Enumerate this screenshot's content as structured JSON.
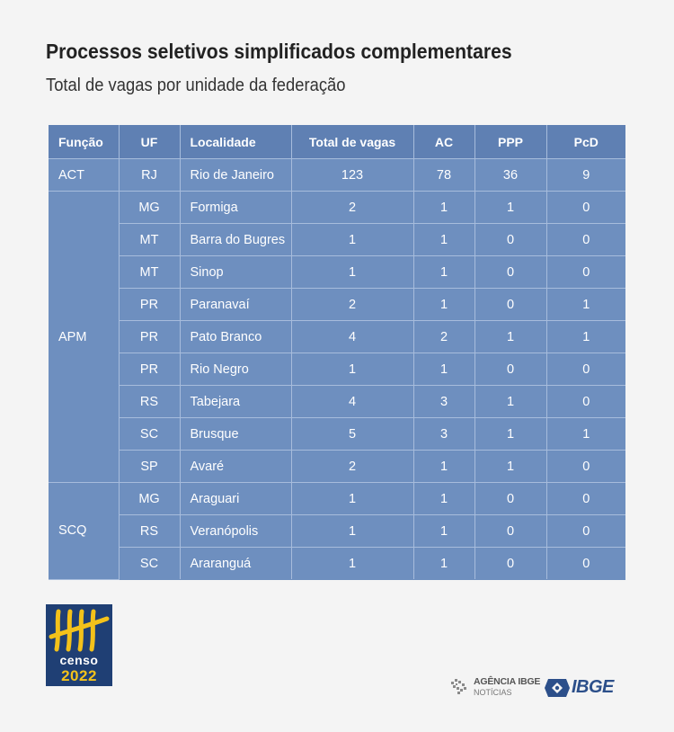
{
  "title": "Processos seletivos simplificados complementares",
  "subtitle": "Total de vagas por unidade da federação",
  "table": {
    "headers": [
      "Função",
      "UF",
      "Localidade",
      "Total de vagas",
      "AC",
      "PPP",
      "PcD"
    ],
    "groups": [
      {
        "funcao": "ACT",
        "rows": [
          {
            "uf": "RJ",
            "localidade": "Rio de Janeiro",
            "total": "123",
            "ac": "78",
            "ppp": "36",
            "pcd": "9"
          }
        ]
      },
      {
        "funcao": "APM",
        "rows": [
          {
            "uf": "MG",
            "localidade": "Formiga",
            "total": "2",
            "ac": "1",
            "ppp": "1",
            "pcd": "0"
          },
          {
            "uf": "MT",
            "localidade": "Barra do Bugres",
            "total": "1",
            "ac": "1",
            "ppp": "0",
            "pcd": "0"
          },
          {
            "uf": "MT",
            "localidade": "Sinop",
            "total": "1",
            "ac": "1",
            "ppp": "0",
            "pcd": "0"
          },
          {
            "uf": "PR",
            "localidade": "Paranavaí",
            "total": "2",
            "ac": "1",
            "ppp": "0",
            "pcd": "1"
          },
          {
            "uf": "PR",
            "localidade": "Pato Branco",
            "total": "4",
            "ac": "2",
            "ppp": "1",
            "pcd": "1"
          },
          {
            "uf": "PR",
            "localidade": "Rio Negro",
            "total": "1",
            "ac": "1",
            "ppp": "0",
            "pcd": "0"
          },
          {
            "uf": "RS",
            "localidade": "Tabejara",
            "total": "4",
            "ac": "3",
            "ppp": "1",
            "pcd": "0"
          },
          {
            "uf": "SC",
            "localidade": "Brusque",
            "total": "5",
            "ac": "3",
            "ppp": "1",
            "pcd": "1"
          },
          {
            "uf": "SP",
            "localidade": "Avaré",
            "total": "2",
            "ac": "1",
            "ppp": "1",
            "pcd": "0"
          }
        ]
      },
      {
        "funcao": "SCQ",
        "rows": [
          {
            "uf": "MG",
            "localidade": "Araguari",
            "total": "1",
            "ac": "1",
            "ppp": "0",
            "pcd": "0"
          },
          {
            "uf": "RS",
            "localidade": "Veranópolis",
            "total": "1",
            "ac": "1",
            "ppp": "0",
            "pcd": "0"
          },
          {
            "uf": "SC",
            "localidade": "Araranguá",
            "total": "1",
            "ac": "1",
            "ppp": "0",
            "pcd": "0"
          }
        ]
      }
    ]
  },
  "logos": {
    "censo_word": "censo",
    "censo_year": "2022",
    "agencia_line1": "AGÊNCIA IBGE",
    "agencia_line2": "NOTÍCIAS",
    "ibge": "IBGE"
  },
  "colors": {
    "table_bg": "#6e8fbf",
    "header_bg": "#5f80b3",
    "grid": "#a7bcdc",
    "censo_blue": "#1f3f74",
    "censo_yellow": "#f4c21a",
    "ibge_blue": "#2c4f8a"
  }
}
